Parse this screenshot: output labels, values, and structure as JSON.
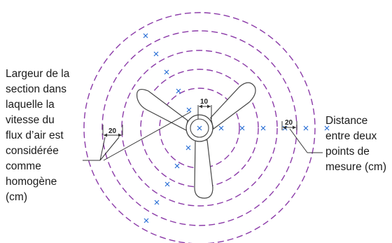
{
  "labels": {
    "left": [
      "Largeur de la",
      "section dans",
      "laquelle la",
      "vitesse du",
      "flux d’air est",
      "considérée",
      "comme",
      "homogène",
      "(cm)"
    ],
    "right": [
      "Distance",
      "entre deux",
      "points de",
      "mesure (cm)"
    ]
  },
  "dimensions": {
    "left_width": "20",
    "center_width": "10",
    "right_width": "20"
  },
  "colors": {
    "ring": "#8b3aa8",
    "marker": "#2a6fd6"
  }
}
